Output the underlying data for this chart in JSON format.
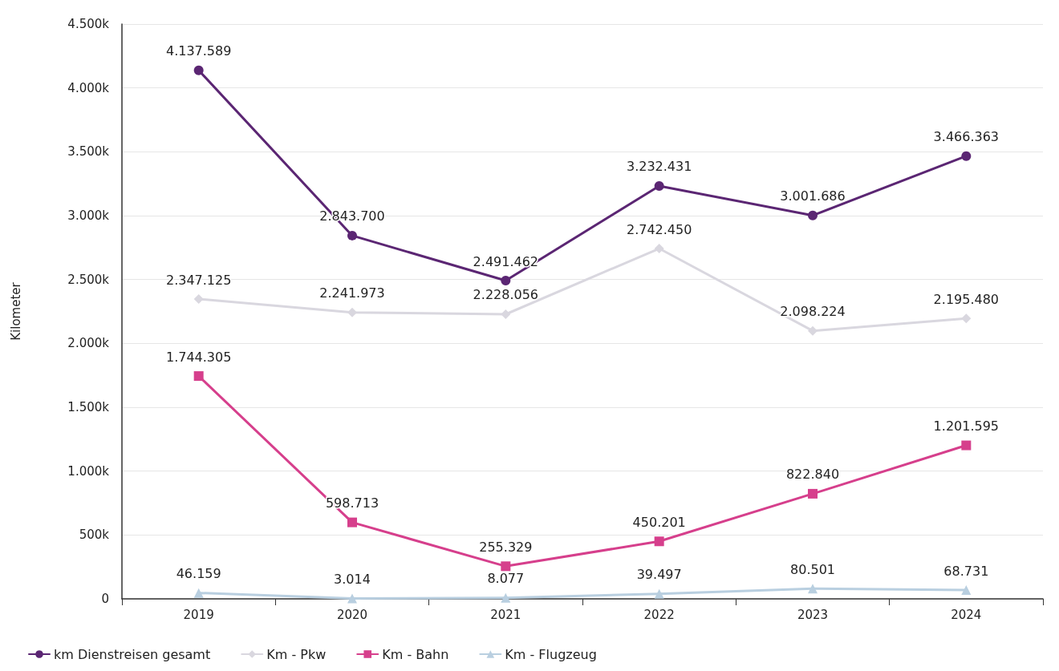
{
  "chart_data": {
    "type": "line",
    "ylabel": "Kilometer",
    "categories": [
      "2019",
      "2020",
      "2021",
      "2022",
      "2023",
      "2024"
    ],
    "series": [
      {
        "name": "km Dienstreisen gesamt",
        "color": "#5b2673",
        "marker": "circle",
        "values": [
          4137589,
          2843700,
          2491462,
          3232431,
          3001686,
          3466363
        ],
        "value_labels": [
          "4.137.589",
          "2.843.700",
          "2.491.462",
          "3.232.431",
          "3.001.686",
          "3.466.363"
        ]
      },
      {
        "name": "Km - Pkw",
        "color": "#d9d7df",
        "marker": "diamond",
        "values": [
          2347125,
          2241973,
          2228056,
          2742450,
          2098224,
          2195480
        ],
        "value_labels": [
          "2.347.125",
          "2.241.973",
          "2.228.056",
          "2.742.450",
          "2.098.224",
          "2.195.480"
        ]
      },
      {
        "name": "Km - Bahn",
        "color": "#d63f8c",
        "marker": "square",
        "values": [
          1744305,
          598713,
          255329,
          450201,
          822840,
          1201595
        ],
        "value_labels": [
          "1.744.305",
          "598.713",
          "255.329",
          "450.201",
          "822.840",
          "1.201.595"
        ]
      },
      {
        "name": "Km - Flugzeug",
        "color": "#b9cfe0",
        "marker": "triangle",
        "values": [
          46159,
          3014,
          8077,
          39497,
          80501,
          68731
        ],
        "value_labels": [
          "46.159",
          "3.014",
          "8.077",
          "39.497",
          "80.501",
          "68.731"
        ]
      }
    ],
    "ylim": [
      0,
      4500000
    ],
    "yticks": [
      0,
      {
        "value": 500000,
        "label": "500k"
      },
      {
        "value": 1000000,
        "label": "1.000k"
      },
      {
        "value": 1500000,
        "label": "1.500k"
      },
      {
        "value": 2000000,
        "label": "2.000k"
      },
      {
        "value": 2500000,
        "label": "2.500k"
      },
      {
        "value": 3000000,
        "label": "3.000k"
      },
      {
        "value": 3500000,
        "label": "3.500k"
      },
      {
        "value": 4000000,
        "label": "4.000k"
      },
      {
        "value": 4500000,
        "label": "4.500k"
      }
    ],
    "grid": "y",
    "legend": "bottom left",
    "line_style": "solid"
  }
}
